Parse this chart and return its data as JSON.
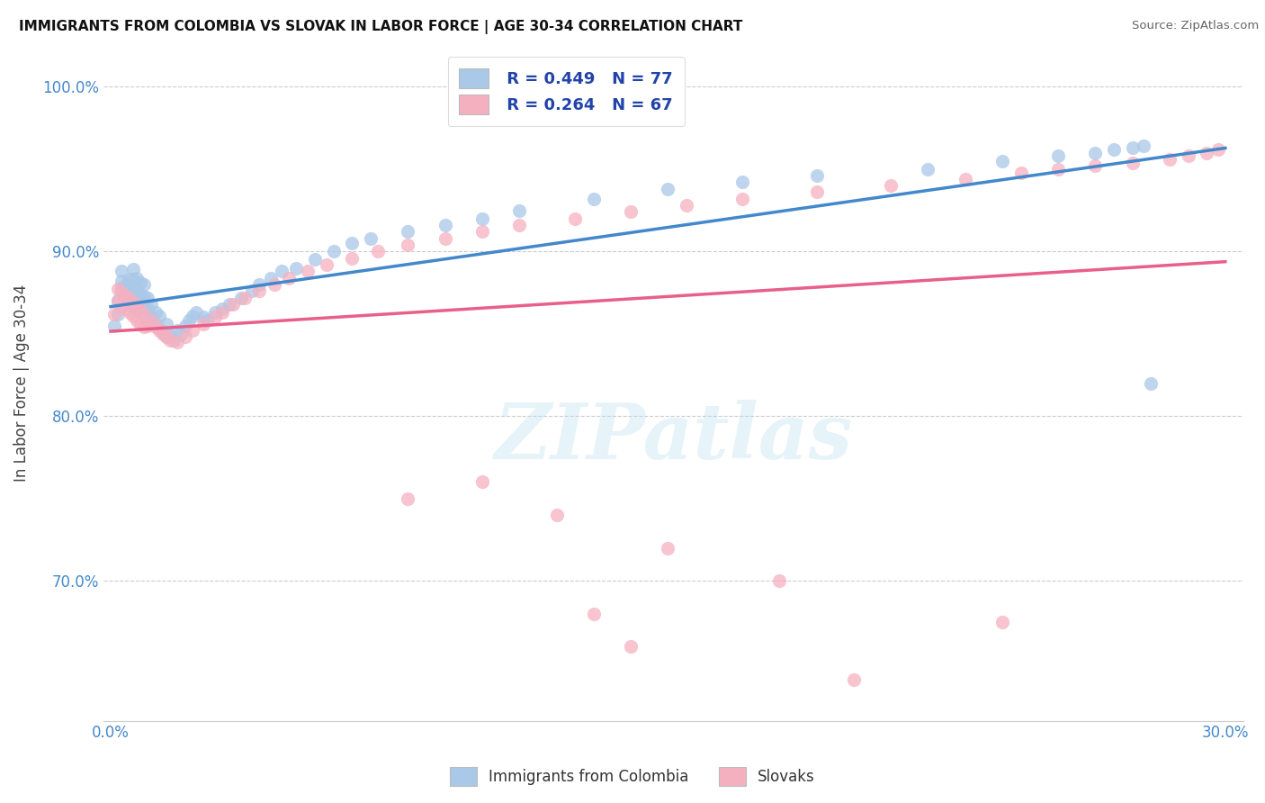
{
  "title": "IMMIGRANTS FROM COLOMBIA VS SLOVAK IN LABOR FORCE | AGE 30-34 CORRELATION CHART",
  "source_text": "Source: ZipAtlas.com",
  "ylabel": "In Labor Force | Age 30-34",
  "xlim": [
    -0.002,
    0.305
  ],
  "ylim": [
    0.615,
    1.025
  ],
  "yticks": [
    0.7,
    0.8,
    0.9,
    1.0
  ],
  "xticks": [
    0.0,
    0.05,
    0.1,
    0.15,
    0.2,
    0.25,
    0.3
  ],
  "colombia_color": "#aac8e8",
  "slovak_color": "#f5b0c0",
  "colombia_line_color": "#4488cc",
  "slovak_line_color": "#e8608a",
  "colombia_R": 0.449,
  "colombia_N": 77,
  "slovak_R": 0.264,
  "slovak_N": 67,
  "legend_label_colombia": "Immigrants from Colombia",
  "legend_label_slovak": "Slovaks",
  "watermark": "ZIPatlas",
  "legend_R_color": "#2244aa",
  "title_color": "#111111",
  "source_color": "#666666",
  "colombia_x": [
    0.001,
    0.002,
    0.002,
    0.003,
    0.003,
    0.003,
    0.004,
    0.004,
    0.004,
    0.005,
    0.005,
    0.005,
    0.006,
    0.006,
    0.006,
    0.006,
    0.007,
    0.007,
    0.007,
    0.007,
    0.008,
    0.008,
    0.008,
    0.009,
    0.009,
    0.009,
    0.01,
    0.01,
    0.01,
    0.011,
    0.011,
    0.012,
    0.012,
    0.013,
    0.013,
    0.014,
    0.015,
    0.015,
    0.016,
    0.017,
    0.018,
    0.019,
    0.02,
    0.021,
    0.022,
    0.023,
    0.025,
    0.026,
    0.028,
    0.03,
    0.032,
    0.035,
    0.038,
    0.04,
    0.043,
    0.046,
    0.05,
    0.055,
    0.06,
    0.065,
    0.07,
    0.08,
    0.09,
    0.1,
    0.11,
    0.13,
    0.15,
    0.17,
    0.19,
    0.22,
    0.24,
    0.255,
    0.265,
    0.27,
    0.275,
    0.278,
    0.28
  ],
  "colombia_y": [
    0.855,
    0.862,
    0.87,
    0.878,
    0.882,
    0.888,
    0.872,
    0.88,
    0.876,
    0.868,
    0.875,
    0.883,
    0.87,
    0.877,
    0.883,
    0.889,
    0.864,
    0.871,
    0.877,
    0.884,
    0.868,
    0.874,
    0.881,
    0.866,
    0.873,
    0.88,
    0.858,
    0.865,
    0.872,
    0.86,
    0.868,
    0.856,
    0.863,
    0.853,
    0.861,
    0.851,
    0.848,
    0.856,
    0.849,
    0.846,
    0.852,
    0.85,
    0.855,
    0.858,
    0.861,
    0.863,
    0.86,
    0.858,
    0.863,
    0.865,
    0.868,
    0.872,
    0.876,
    0.88,
    0.884,
    0.888,
    0.89,
    0.895,
    0.9,
    0.905,
    0.908,
    0.912,
    0.916,
    0.92,
    0.925,
    0.932,
    0.938,
    0.942,
    0.946,
    0.95,
    0.955,
    0.958,
    0.96,
    0.962,
    0.963,
    0.964,
    0.82
  ],
  "slovak_x": [
    0.001,
    0.002,
    0.002,
    0.003,
    0.003,
    0.004,
    0.004,
    0.005,
    0.005,
    0.006,
    0.006,
    0.007,
    0.007,
    0.008,
    0.008,
    0.009,
    0.009,
    0.01,
    0.011,
    0.012,
    0.013,
    0.014,
    0.015,
    0.016,
    0.018,
    0.02,
    0.022,
    0.025,
    0.028,
    0.03,
    0.033,
    0.036,
    0.04,
    0.044,
    0.048,
    0.053,
    0.058,
    0.065,
    0.072,
    0.08,
    0.09,
    0.1,
    0.11,
    0.125,
    0.14,
    0.155,
    0.17,
    0.19,
    0.21,
    0.23,
    0.245,
    0.255,
    0.265,
    0.275,
    0.285,
    0.29,
    0.295,
    0.298,
    0.08,
    0.12,
    0.15,
    0.18,
    0.1,
    0.13,
    0.14,
    0.2,
    0.24
  ],
  "slovak_y": [
    0.862,
    0.87,
    0.877,
    0.867,
    0.875,
    0.865,
    0.873,
    0.863,
    0.871,
    0.861,
    0.869,
    0.858,
    0.866,
    0.856,
    0.864,
    0.854,
    0.862,
    0.855,
    0.858,
    0.854,
    0.852,
    0.85,
    0.848,
    0.846,
    0.845,
    0.848,
    0.852,
    0.856,
    0.86,
    0.863,
    0.868,
    0.872,
    0.876,
    0.88,
    0.884,
    0.888,
    0.892,
    0.896,
    0.9,
    0.904,
    0.908,
    0.912,
    0.916,
    0.92,
    0.924,
    0.928,
    0.932,
    0.936,
    0.94,
    0.944,
    0.948,
    0.95,
    0.952,
    0.954,
    0.956,
    0.958,
    0.96,
    0.962,
    0.75,
    0.74,
    0.72,
    0.7,
    0.76,
    0.68,
    0.66,
    0.64,
    0.675
  ]
}
